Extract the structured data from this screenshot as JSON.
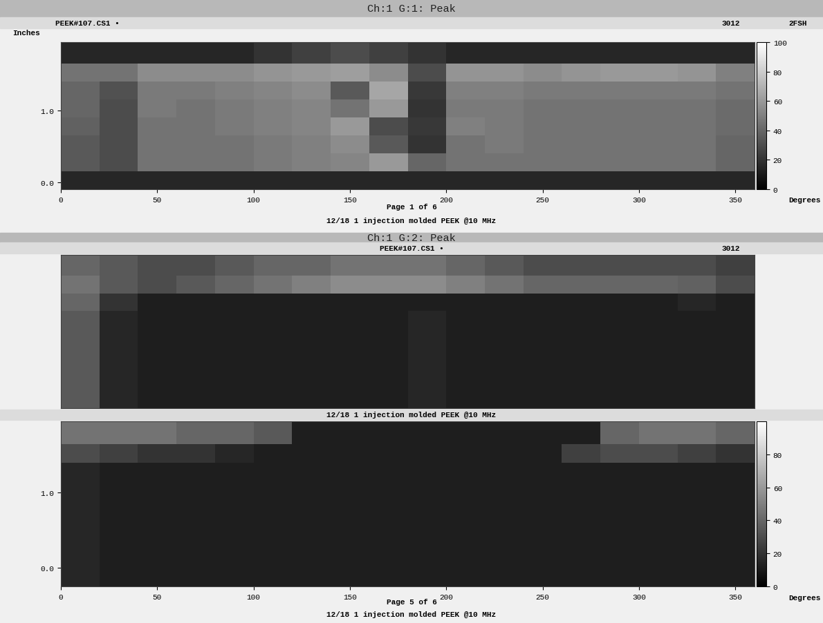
{
  "chart_data": [
    {
      "type": "heatmap",
      "title": "Ch:1 G:1: Peak",
      "subtitle": "PEEK#107.CS1 •",
      "annotations": [
        "3012",
        "2FSH",
        "Page 1 of 6",
        "12/18 1 injection molded PEEK @10 MHz"
      ],
      "xlabel": "Degrees",
      "ylabel": "Inches",
      "color": "gray",
      "xlim": [
        0,
        360
      ],
      "xticks": [
        0,
        50,
        100,
        150,
        200,
        250,
        300,
        350
      ],
      "ylim": [
        -0.1,
        1.95
      ],
      "yticks": [
        {
          "value": 0,
          "label": "0.0"
        },
        {
          "value": 1,
          "label": "1.0"
        }
      ],
      "x_edges": [
        0,
        20,
        40,
        60,
        80,
        100,
        120,
        140,
        160,
        180,
        200,
        220,
        240,
        260,
        280,
        300,
        320,
        340,
        360
      ],
      "y_edges": [
        -0.1,
        0.15,
        0.4,
        0.65,
        0.9,
        1.15,
        1.4,
        1.65,
        1.95
      ],
      "cells": [
        [
          15,
          15,
          15,
          15,
          15,
          15,
          15,
          15,
          15,
          15,
          15,
          15,
          15,
          15,
          15,
          15,
          15,
          15
        ],
        [
          35,
          30,
          45,
          45,
          45,
          48,
          50,
          52,
          60,
          40,
          45,
          45,
          45,
          45,
          45,
          45,
          45,
          40
        ],
        [
          35,
          30,
          45,
          45,
          45,
          48,
          50,
          55,
          35,
          20,
          45,
          48,
          45,
          45,
          45,
          45,
          45,
          40
        ],
        [
          38,
          30,
          45,
          45,
          48,
          50,
          52,
          60,
          30,
          22,
          50,
          48,
          45,
          45,
          45,
          45,
          45,
          42
        ],
        [
          40,
          30,
          48,
          45,
          48,
          50,
          52,
          45,
          60,
          20,
          48,
          48,
          45,
          45,
          45,
          45,
          45,
          42
        ],
        [
          40,
          32,
          48,
          48,
          50,
          52,
          55,
          35,
          65,
          22,
          50,
          50,
          48,
          48,
          48,
          48,
          48,
          45
        ],
        [
          45,
          45,
          55,
          55,
          55,
          58,
          60,
          62,
          55,
          30,
          58,
          58,
          55,
          58,
          60,
          60,
          58,
          50
        ],
        [
          15,
          15,
          15,
          15,
          15,
          20,
          25,
          30,
          25,
          20,
          15,
          15,
          15,
          15,
          15,
          15,
          15,
          15
        ]
      ],
      "color_range": [
        0,
        100
      ],
      "color_ticks": [
        0,
        20,
        40,
        60,
        80,
        100
      ]
    },
    {
      "type": "heatmap",
      "title": "Ch:1 G:2: Peak",
      "subtitle": "PEEK#107.CS1 •",
      "annotations": [
        "3012",
        "12/18 1 injection molded PEEK @10 MHz"
      ],
      "tick_labels": false,
      "color": "gray",
      "xlim": [
        0,
        360
      ],
      "ylim": [
        -0.25,
        1.95
      ],
      "x_edges": [
        0,
        20,
        40,
        60,
        80,
        100,
        120,
        140,
        160,
        180,
        200,
        220,
        240,
        260,
        280,
        300,
        320,
        340,
        360
      ],
      "y_edges": [
        -0.25,
        0.15,
        0.4,
        0.65,
        0.9,
        1.15,
        1.4,
        1.65,
        1.95
      ],
      "cells": [
        [
          35,
          15,
          12,
          12,
          12,
          12,
          12,
          12,
          12,
          15,
          12,
          12,
          12,
          12,
          12,
          12,
          12,
          12
        ],
        [
          35,
          15,
          12,
          12,
          12,
          12,
          12,
          12,
          12,
          15,
          12,
          12,
          12,
          12,
          12,
          12,
          12,
          12
        ],
        [
          35,
          15,
          12,
          12,
          12,
          12,
          12,
          12,
          12,
          15,
          12,
          12,
          12,
          12,
          12,
          12,
          12,
          12
        ],
        [
          35,
          15,
          12,
          12,
          12,
          12,
          12,
          12,
          12,
          15,
          12,
          12,
          12,
          12,
          12,
          12,
          12,
          12
        ],
        [
          35,
          15,
          12,
          12,
          12,
          12,
          12,
          12,
          12,
          15,
          12,
          12,
          12,
          12,
          12,
          12,
          12,
          12
        ],
        [
          40,
          20,
          12,
          12,
          12,
          12,
          12,
          12,
          12,
          12,
          12,
          12,
          12,
          12,
          12,
          12,
          15,
          12
        ],
        [
          45,
          35,
          30,
          35,
          40,
          45,
          50,
          55,
          55,
          55,
          50,
          45,
          40,
          40,
          40,
          40,
          38,
          30
        ],
        [
          40,
          35,
          30,
          30,
          35,
          40,
          40,
          45,
          45,
          45,
          40,
          35,
          30,
          30,
          30,
          30,
          30,
          25
        ]
      ],
      "color_range": [
        0,
        100
      ]
    },
    {
      "type": "heatmap",
      "annotations": [
        "Page 5 of 6",
        "12/18 1 injection molded PEEK @10 MHz"
      ],
      "xlabel": "Degrees",
      "color": "gray",
      "xlim": [
        0,
        360
      ],
      "xticks": [
        0,
        50,
        100,
        150,
        200,
        250,
        300,
        350
      ],
      "ylim": [
        -0.25,
        1.95
      ],
      "yticks": [
        {
          "value": 0,
          "label": "0.0"
        },
        {
          "value": 1,
          "label": "1.0"
        }
      ],
      "x_edges": [
        0,
        20,
        40,
        60,
        80,
        100,
        120,
        140,
        160,
        180,
        200,
        220,
        240,
        260,
        280,
        300,
        320,
        340,
        360
      ],
      "y_edges": [
        -0.25,
        0.15,
        0.4,
        0.65,
        0.9,
        1.15,
        1.4,
        1.65,
        1.95
      ],
      "cells": [
        [
          15,
          12,
          12,
          12,
          12,
          12,
          12,
          12,
          12,
          12,
          12,
          12,
          12,
          12,
          12,
          12,
          12,
          12
        ],
        [
          15,
          12,
          12,
          12,
          12,
          12,
          12,
          12,
          12,
          12,
          12,
          12,
          12,
          12,
          12,
          12,
          12,
          12
        ],
        [
          15,
          12,
          12,
          12,
          12,
          12,
          12,
          12,
          12,
          12,
          12,
          12,
          12,
          12,
          12,
          12,
          12,
          12
        ],
        [
          15,
          12,
          12,
          12,
          12,
          12,
          12,
          12,
          12,
          12,
          12,
          12,
          12,
          12,
          12,
          12,
          12,
          12
        ],
        [
          15,
          12,
          12,
          12,
          12,
          12,
          12,
          12,
          12,
          12,
          12,
          12,
          12,
          12,
          12,
          12,
          12,
          12
        ],
        [
          15,
          12,
          12,
          12,
          12,
          12,
          12,
          12,
          12,
          12,
          12,
          12,
          12,
          12,
          12,
          12,
          12,
          12
        ],
        [
          30,
          25,
          20,
          20,
          15,
          12,
          12,
          12,
          12,
          12,
          12,
          12,
          12,
          25,
          30,
          30,
          25,
          20
        ],
        [
          45,
          45,
          45,
          40,
          40,
          35,
          12,
          12,
          12,
          12,
          12,
          12,
          12,
          12,
          40,
          45,
          45,
          40
        ]
      ],
      "color_range": [
        0,
        100
      ],
      "color_ticks": [
        0,
        20,
        40,
        60,
        80
      ]
    }
  ]
}
